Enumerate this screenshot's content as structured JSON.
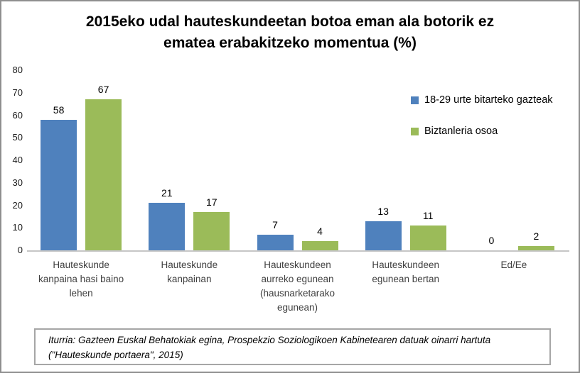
{
  "title": {
    "lines": [
      "2015eko udal hauteskundeetan botoa eman ala botorik ez",
      "ematea erabakitzeko momentua  (%)"
    ]
  },
  "chart_data": {
    "type": "bar",
    "title": "2015eko udal hauteskundeetan botoa eman ala botorik ez ematea erabakitzeko momentua (%)",
    "categories": [
      "Hauteskunde kanpaina hasi baino lehen",
      "Hauteskunde kanpainan",
      "Hauteskundeen aurreko egunean (hausnarketarako egunean)",
      "Hauteskundeen egunean bertan",
      "Ed/Ee"
    ],
    "category_lines": [
      [
        "Hauteskunde",
        "kanpaina hasi baino",
        "lehen"
      ],
      [
        "Hauteskunde",
        "kanpainan"
      ],
      [
        "Hauteskundeen",
        "aurreko egunean",
        "(hausnarketarako",
        "egunean)"
      ],
      [
        "Hauteskundeen",
        "egunean bertan"
      ],
      [
        "Ed/Ee"
      ]
    ],
    "series": [
      {
        "name": "18-29 urte bitarteko gazteak",
        "color": "#4F81BD",
        "values": [
          58,
          21,
          7,
          13,
          0
        ]
      },
      {
        "name": "Biztanleria osoa",
        "color": "#9BBB59",
        "values": [
          67,
          17,
          4,
          11,
          2
        ]
      }
    ],
    "ylim": [
      0,
      80
    ],
    "yticks": [
      0,
      10,
      20,
      30,
      40,
      50,
      60,
      70,
      80
    ],
    "grid": false,
    "legend_position": "right",
    "data_labels": true
  },
  "source": {
    "lines": [
      "Iturria: Gazteen Euskal Behatokiak egina, Prospekzio Soziologikoen Kabinetearen datuak oinarri hartuta",
      "(\"Hauteskunde portaera\", 2015)"
    ]
  },
  "colors": {
    "series_blue": "#4F81BD",
    "series_green": "#9BBB59",
    "axis_line": "#C6C6C6",
    "frame_border": "#8F8F8F",
    "source_border": "#A6A6A6",
    "category_text": "#3F3F3F",
    "label_text": "#000000"
  }
}
